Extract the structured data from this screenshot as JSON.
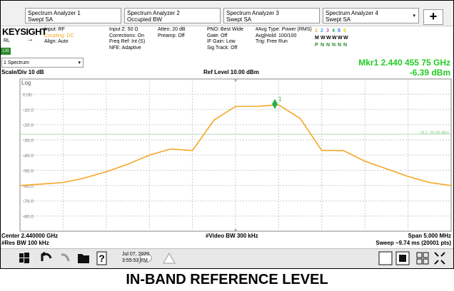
{
  "tabs": [
    {
      "title": "Spectrum Analyzer 1",
      "mode": "Swept SA"
    },
    {
      "title": "Spectrum Analyzer 2",
      "mode": "Occupied BW"
    },
    {
      "title": "Spectrum Analyzer 3",
      "mode": "Swept SA"
    },
    {
      "title": "Spectrum Analyzer 4",
      "mode": "Swept SA"
    }
  ],
  "add_tab": "+",
  "status": {
    "brand": "KEYSIGHT",
    "rl": "RL",
    "lxi": "LXI",
    "input": [
      "Input: RF",
      "Coupling: DC",
      "Align: Auto"
    ],
    "corrections": [
      "Input Z: 50 Ω",
      "Corrections: On",
      "Freq Ref: Int (S)",
      "NFE: Adaptive"
    ],
    "atten": [
      "Atten: 20 dB",
      "Preamp: Off"
    ],
    "pno": [
      "PNO: Best Wide",
      "Gate: Off",
      "IF Gain: Low",
      "Sig Track: Off"
    ],
    "avg": [
      "#Avg Type: Power (RMS)",
      "Avg|Hold: 100/100",
      "Trig: Free Run"
    ],
    "traces": [
      "1",
      "2",
      "3",
      "4",
      "5",
      "6"
    ],
    "trace_modes": [
      "M",
      "W",
      "W",
      "W",
      "W",
      "W"
    ],
    "detectors": [
      "P",
      "N",
      "N",
      "N",
      "N",
      "N"
    ]
  },
  "window": "1 Spectrum",
  "marker_readout": {
    "frequency": "Mkr1  2.440 455 75 GHz",
    "amplitude": "-6.39 dBm"
  },
  "scale": "Scale/Div 10 dB",
  "ref_level": "Ref Level 10.00 dBm",
  "plot": {
    "scale_type": "Log",
    "ylim": [
      -90,
      10
    ],
    "yticks": [
      {
        "value": 0,
        "label": "0.00"
      },
      {
        "value": -10,
        "label": "-10.0"
      },
      {
        "value": -20,
        "label": "-20.0"
      },
      {
        "value": -30,
        "label": "-30.0"
      },
      {
        "value": -40,
        "label": "-40.0"
      },
      {
        "value": -50,
        "label": "-50.0"
      },
      {
        "value": -60,
        "label": "-60.0"
      },
      {
        "value": -70,
        "label": "-70.0"
      },
      {
        "value": -80,
        "label": "-80.0"
      }
    ],
    "xlim": [
      2.4375,
      2.4425
    ],
    "trace": {
      "color": "#f5a623",
      "x": [
        2.4375,
        2.43775,
        2.438,
        2.43825,
        2.4385,
        2.43875,
        2.439,
        2.43925,
        2.4395,
        2.43975,
        2.44,
        2.44025,
        2.4405,
        2.44075,
        2.441,
        2.44125,
        2.4415,
        2.44175,
        2.442,
        2.44225,
        2.4425
      ],
      "values": [
        -60,
        -59,
        -58,
        -55,
        -51,
        -46,
        -40,
        -36,
        -37,
        -17,
        -8,
        -8,
        -7,
        -16,
        -37,
        -37,
        -44,
        -49,
        -54,
        -58,
        -60
      ]
    },
    "marker": {
      "label": "1",
      "x": 2.44045575,
      "y": -6.39,
      "color": "#22b14c"
    },
    "display_line": {
      "label": "DL1 -26.35 dBm",
      "value": -26.35,
      "color": "#7fc97f"
    }
  },
  "footer": {
    "center": "Center 2.440000 GHz",
    "res_bw": "#Res BW 100 kHz",
    "video_bw": "#Video BW 300 kHz",
    "span": "Span 5.000 MHz",
    "sweep": "Sweep ~9.74 ms (20001 pts)"
  },
  "taskbar": {
    "date": "Jul 07, 2020",
    "time": "3:55:53 PM"
  },
  "caption": "IN-BAND REFERENCE LEVEL"
}
